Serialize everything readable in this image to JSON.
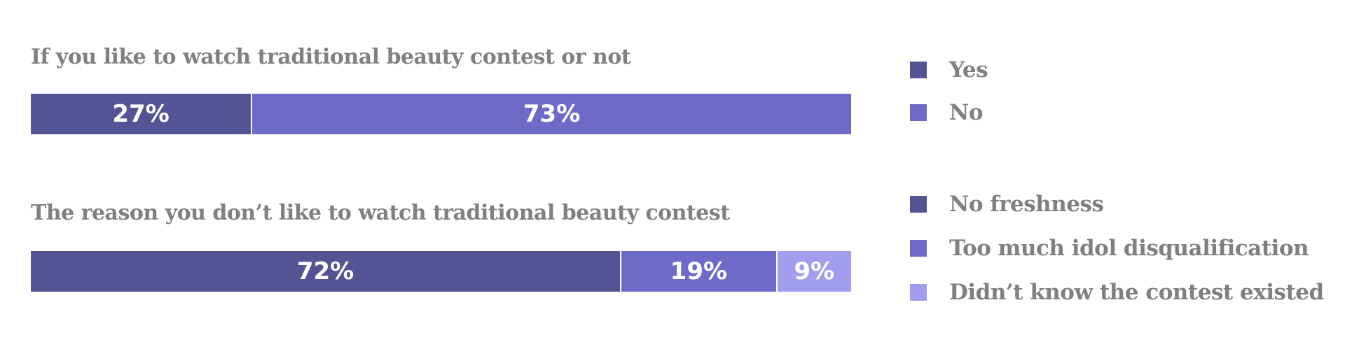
{
  "colors": {
    "dark": "#545494",
    "mid": "#6e6bc8",
    "light": "#a39ded",
    "text": "#808080"
  },
  "chart_data": [
    {
      "type": "bar",
      "orientation": "horizontal-stacked-100",
      "title": "If you like to watch traditional beauty contest or not",
      "series": [
        {
          "name": "Yes",
          "value": 27,
          "label": "27%",
          "color": "#545494"
        },
        {
          "name": "No",
          "value": 73,
          "label": "73%",
          "color": "#6e6bc8"
        }
      ],
      "legend_position": "right"
    },
    {
      "type": "bar",
      "orientation": "horizontal-stacked-100",
      "title": "The reason you don’t like to watch traditional beauty contest",
      "series": [
        {
          "name": "No freshness",
          "value": 72,
          "label": "72%",
          "color": "#545494"
        },
        {
          "name": "Too much idol disqualification",
          "value": 19,
          "label": "19%",
          "color": "#6e6bc8"
        },
        {
          "name": "Didn’t know the contest existed",
          "value": 9,
          "label": "9%",
          "color": "#a39ded"
        }
      ],
      "legend_position": "right"
    }
  ]
}
